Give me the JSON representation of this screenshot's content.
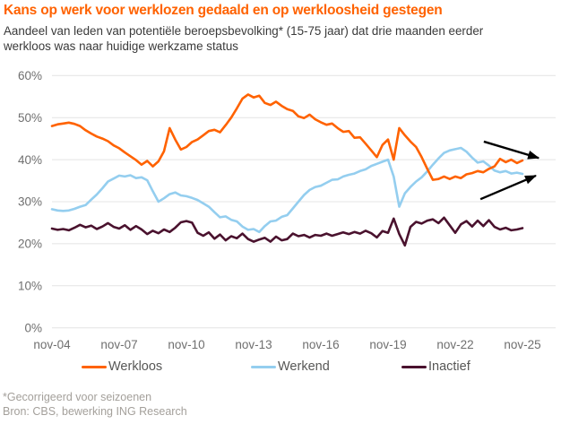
{
  "footer": {
    "note": "*Gecorrigeerd voor seizoenen",
    "source": "Bron: CBS, bewerking ING Research"
  },
  "chart_data": {
    "type": "line",
    "title": "Kans op werk voor werklozen gedaald en op werkloosheid gestegen",
    "subtitle_line1": "Aandeel van leden van potentiële beroepsbevolking* (15-75 jaar) dat drie maanden eerder",
    "subtitle_line2": "werkloos was naar huidige werkzame status",
    "ylim": [
      0,
      60
    ],
    "y_tick_labels": [
      "60%",
      "50%",
      "40%",
      "30%",
      "20%",
      "10%",
      "0%"
    ],
    "x_tick_labels": [
      "nov-04",
      "nov-07",
      "nov-10",
      "nov-13",
      "nov-16",
      "nov-19",
      "nov-22",
      "nov-25"
    ],
    "x_note": "quarterly samples, nov-2004 through nov-2025, values in percent",
    "grid": "horizontal only",
    "legend_position": "bottom",
    "colors": {
      "accent": "#FF6200",
      "grid": "#E4E4E4",
      "tick_text": "#6F6F6F",
      "legend_text": "#575756",
      "footer_text": "#A4A09B",
      "arrow": "#000000"
    },
    "series": [
      {
        "name": "Werkloos",
        "color": "#FF6200",
        "values": [
          48.0,
          48.4,
          48.6,
          48.8,
          48.5,
          48.0,
          47.0,
          46.2,
          45.5,
          45.0,
          44.4,
          43.4,
          42.7,
          41.7,
          40.8,
          39.9,
          38.8,
          39.7,
          38.4,
          39.6,
          42.0,
          47.5,
          44.8,
          42.4,
          43.0,
          44.2,
          44.8,
          45.8,
          46.8,
          47.1,
          46.5,
          48.2,
          50.0,
          52.2,
          54.5,
          55.5,
          54.8,
          55.2,
          53.5,
          53.0,
          53.8,
          52.8,
          52.0,
          51.6,
          50.3,
          49.9,
          50.7,
          49.6,
          48.9,
          48.3,
          48.6,
          47.5,
          46.6,
          46.8,
          45.2,
          45.3,
          43.8,
          42.2,
          40.6,
          43.5,
          44.8,
          40.0,
          47.5,
          45.8,
          44.3,
          43.0,
          40.6,
          37.8,
          35.2,
          35.4,
          36.0,
          35.4,
          36.0,
          35.6,
          36.5,
          36.8,
          37.3,
          37.0,
          37.8,
          38.4,
          40.2,
          39.4,
          40.0,
          39.2,
          39.8
        ]
      },
      {
        "name": "Werkend",
        "color": "#94CEEF",
        "values": [
          28.2,
          27.9,
          27.8,
          27.9,
          28.3,
          28.8,
          29.2,
          30.5,
          31.7,
          33.2,
          34.8,
          35.5,
          36.2,
          36.0,
          36.3,
          35.6,
          35.8,
          35.1,
          32.5,
          30.0,
          30.8,
          31.8,
          32.2,
          31.5,
          31.3,
          30.9,
          30.4,
          29.6,
          28.8,
          27.5,
          26.3,
          26.5,
          25.7,
          25.3,
          24.1,
          23.3,
          23.5,
          22.8,
          24.2,
          25.3,
          25.5,
          26.4,
          26.8,
          28.4,
          30.0,
          31.6,
          32.8,
          33.5,
          33.8,
          34.5,
          35.2,
          35.3,
          36.0,
          36.4,
          36.7,
          37.3,
          37.7,
          38.5,
          39.0,
          39.5,
          40.0,
          36.0,
          28.8,
          32.0,
          33.5,
          34.8,
          35.8,
          37.2,
          38.8,
          40.3,
          41.6,
          42.2,
          42.5,
          42.8,
          41.9,
          40.5,
          39.3,
          39.6,
          38.6,
          37.4,
          37.0,
          37.3,
          36.7,
          36.9,
          36.6
        ]
      },
      {
        "name": "Inactief",
        "color": "#4A122E",
        "values": [
          23.6,
          23.3,
          23.5,
          23.2,
          23.8,
          24.5,
          23.9,
          24.3,
          23.5,
          24.1,
          24.9,
          24.0,
          23.6,
          24.4,
          23.3,
          24.2,
          23.4,
          22.3,
          23.1,
          22.5,
          23.4,
          22.8,
          23.8,
          25.1,
          25.4,
          25.0,
          22.6,
          21.9,
          22.7,
          21.2,
          22.2,
          20.8,
          21.8,
          21.3,
          22.4,
          21.1,
          20.5,
          21.0,
          21.4,
          20.5,
          21.7,
          20.8,
          21.1,
          22.4,
          21.8,
          22.1,
          21.5,
          22.1,
          21.9,
          22.4,
          21.9,
          22.3,
          22.7,
          22.3,
          22.8,
          22.4,
          23.1,
          22.5,
          21.5,
          23.0,
          22.6,
          26.0,
          22.3,
          19.6,
          24.0,
          25.2,
          24.8,
          25.5,
          25.8,
          24.9,
          26.2,
          24.4,
          22.6,
          24.6,
          25.4,
          24.1,
          25.5,
          24.2,
          25.6,
          24.0,
          23.4,
          23.8,
          23.2,
          23.4,
          23.7
        ]
      }
    ],
    "annotations": {
      "arrows": [
        {
          "from": [
            77.1,
            44.3
          ],
          "to": [
            86.9,
            40.4
          ]
        },
        {
          "from": [
            76.5,
            30.6
          ],
          "to": [
            86.4,
            36.2
          ]
        }
      ]
    }
  }
}
